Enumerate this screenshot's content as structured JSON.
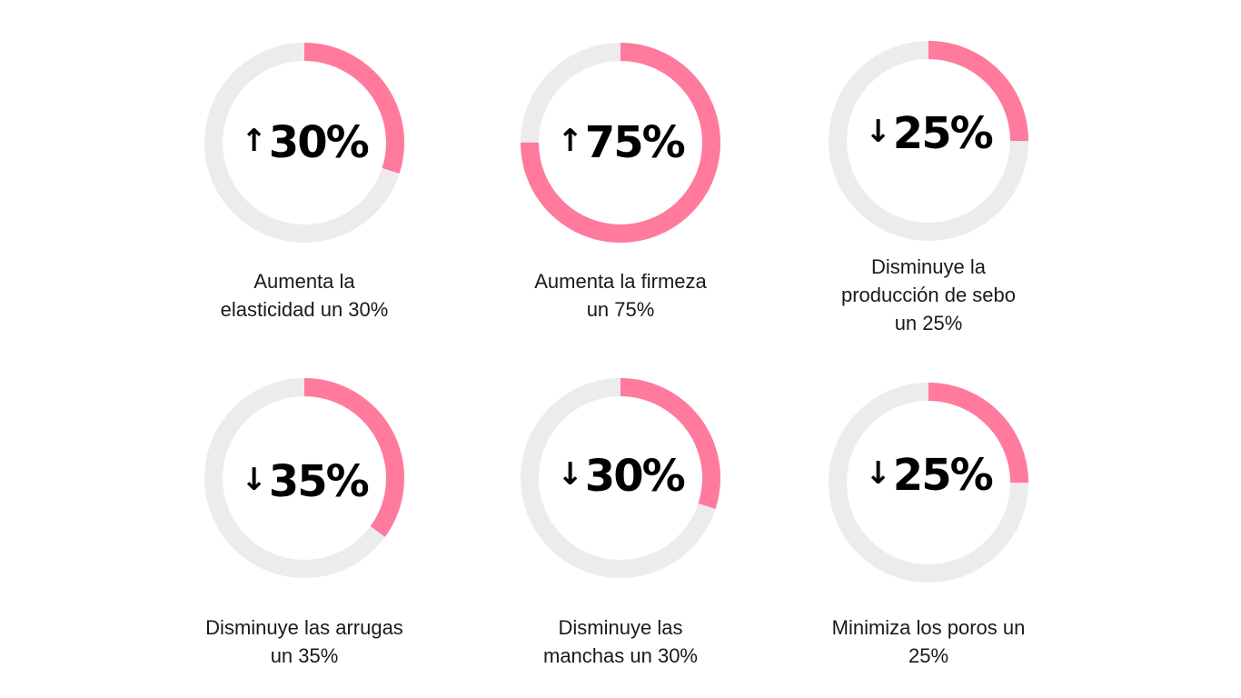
{
  "colors": {
    "accent": "#ff7a9c",
    "track": "#ececec",
    "text": "#000000"
  },
  "chart_data": [
    {
      "type": "pie",
      "direction": "up",
      "arrow_icon": "arrow-up-icon",
      "display": "30%",
      "value": 30,
      "caption_lines": [
        "Aumenta la",
        "elasticidad un 30%"
      ]
    },
    {
      "type": "pie",
      "direction": "up",
      "arrow_icon": "arrow-up-icon",
      "display": "75%",
      "value": 75,
      "caption_lines": [
        "Aumenta la firmeza",
        "un 75%"
      ]
    },
    {
      "type": "pie",
      "direction": "down",
      "arrow_icon": "arrow-down-icon",
      "display": "25%",
      "value": 25,
      "caption_lines": [
        "Disminuye la",
        "producción de sebo",
        "un 25%"
      ]
    },
    {
      "type": "pie",
      "direction": "down",
      "arrow_icon": "arrow-down-icon",
      "display": "35%",
      "value": 35,
      "caption_lines": [
        "Disminuye las arrugas",
        "un 35%"
      ]
    },
    {
      "type": "pie",
      "direction": "down",
      "arrow_icon": "arrow-down-icon",
      "display": "30%",
      "value": 30,
      "caption_lines": [
        "Disminuye las",
        "manchas un 30%"
      ]
    },
    {
      "type": "pie",
      "direction": "down",
      "arrow_icon": "arrow-down-icon",
      "display": "25%",
      "value": 25,
      "caption_lines": [
        "Minimiza los poros un",
        "25%"
      ]
    }
  ]
}
